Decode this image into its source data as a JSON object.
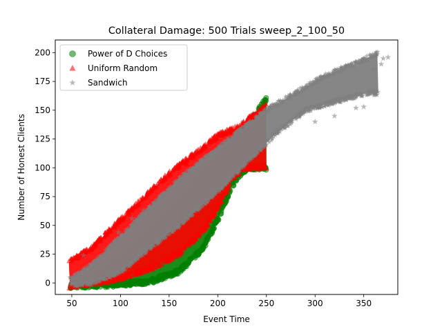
{
  "chart_data": {
    "type": "scatter",
    "title": "Collateral Damage: 500 Trials sweep_2_100_50",
    "xlabel": "Event Time",
    "ylabel": "Number of Honest Clients",
    "xlim": [
      33,
      385
    ],
    "ylim": [
      -10,
      211
    ],
    "xticks": [
      50,
      100,
      150,
      200,
      250,
      300,
      350
    ],
    "yticks": [
      0,
      25,
      50,
      75,
      100,
      125,
      150,
      175,
      200
    ],
    "grid": false,
    "legend_position": "top-left",
    "series": [
      {
        "name": "Power of D Choices",
        "marker": "circle",
        "color": "#008000",
        "alpha": 0.5,
        "band": {
          "lower": [
            [
              48,
              -3
            ],
            [
              80,
              -2
            ],
            [
              100,
              -1
            ],
            [
              130,
              1
            ],
            [
              160,
              10
            ],
            [
              185,
              30
            ],
            [
              200,
              55
            ],
            [
              215,
              85
            ],
            [
              230,
              100
            ]
          ],
          "upper": [
            [
              48,
              -3
            ],
            [
              70,
              5
            ],
            [
              100,
              20
            ],
            [
              150,
              60
            ],
            [
              200,
              110
            ],
            [
              230,
              135
            ],
            [
              250,
              160
            ]
          ]
        }
      },
      {
        "name": "Uniform Random",
        "marker": "triangle",
        "color": "#ff0000",
        "alpha": 0.5,
        "band": {
          "lower": [
            [
              47,
              -3
            ],
            [
              80,
              1
            ],
            [
              100,
              4
            ],
            [
              130,
              12
            ],
            [
              160,
              25
            ],
            [
              185,
              45
            ],
            [
              200,
              65
            ],
            [
              215,
              90
            ],
            [
              225,
              100
            ]
          ],
          "upper": [
            [
              47,
              18
            ],
            [
              70,
              30
            ],
            [
              100,
              55
            ],
            [
              150,
              95
            ],
            [
              200,
              128
            ],
            [
              220,
              135
            ],
            [
              250,
              155
            ]
          ]
        },
        "outliers": [
          [
            168,
            103
          ],
          [
            174,
            101
          ],
          [
            198,
            128
          ],
          [
            222,
            130
          ],
          [
            214,
            127
          ]
        ]
      },
      {
        "name": "Sandwich",
        "marker": "star",
        "color": "#808080",
        "alpha": 0.5,
        "band": {
          "lower": [
            [
              48,
              -2
            ],
            [
              70,
              0
            ],
            [
              100,
              10
            ],
            [
              130,
              30
            ],
            [
              160,
              50
            ],
            [
              200,
              80
            ],
            [
              230,
              105
            ],
            [
              260,
              130
            ],
            [
              290,
              150
            ],
            [
              330,
              160
            ],
            [
              355,
              165
            ]
          ],
          "upper": [
            [
              48,
              3
            ],
            [
              70,
              15
            ],
            [
              100,
              40
            ],
            [
              130,
              65
            ],
            [
              160,
              90
            ],
            [
              190,
              110
            ],
            [
              220,
              130
            ],
            [
              250,
              150
            ],
            [
              280,
              165
            ],
            [
              310,
              180
            ],
            [
              340,
              190
            ],
            [
              365,
              200
            ]
          ]
        },
        "outliers": [
          [
            375,
            196
          ],
          [
            370,
            195
          ],
          [
            360,
            185
          ],
          [
            350,
            153
          ],
          [
            342,
            152
          ],
          [
            320,
            145
          ],
          [
            98,
            44
          ],
          [
            112,
            56
          ],
          [
            124,
            63
          ],
          [
            62,
            24
          ],
          [
            368,
            190
          ],
          [
            300,
            140
          ]
        ]
      }
    ]
  }
}
